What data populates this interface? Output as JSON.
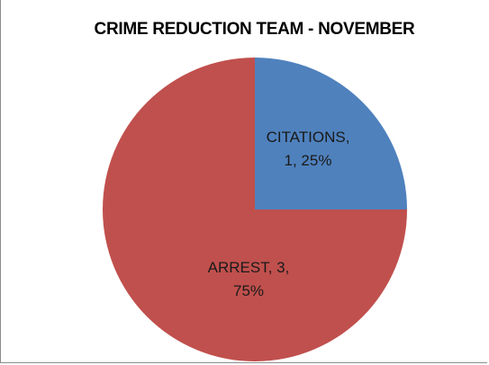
{
  "chart_data": {
    "type": "pie",
    "title": "CRIME REDUCTION TEAM - NOVEMBER",
    "categories": [
      "CITATIONS",
      "ARREST"
    ],
    "values": [
      1,
      3
    ],
    "percentages": [
      "25%",
      "75%"
    ],
    "colors": [
      "#4f81bd",
      "#c0504d"
    ],
    "data_labels": [
      [
        "CITATIONS,",
        "1, 25%"
      ],
      [
        "ARREST, 3,",
        "75%"
      ]
    ],
    "legend": "none"
  }
}
